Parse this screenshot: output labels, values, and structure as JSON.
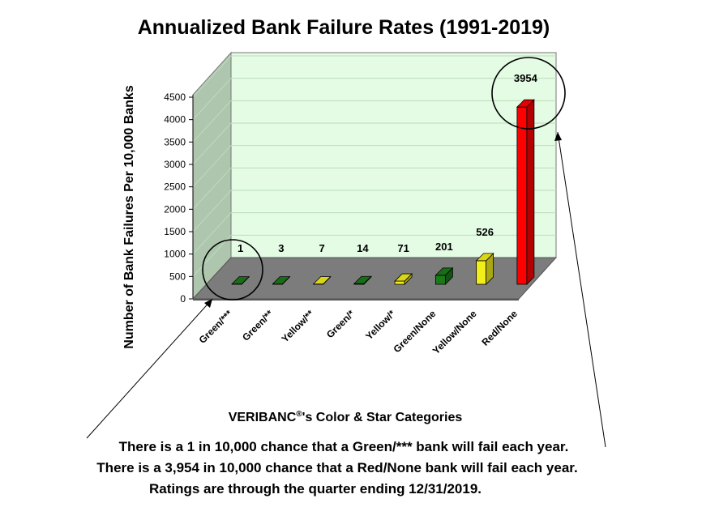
{
  "chart_data": {
    "type": "bar",
    "title": "Annualized Bank Failure Rates (1991-2019)",
    "ylabel": "Number of Bank Failures Per 10,000 Banks",
    "xlabel_prefix": "VERIBANC",
    "xlabel_sup": "®",
    "xlabel_suffix": "'s Color & Star Categories",
    "ylim": [
      0,
      4500
    ],
    "yticks": [
      "0",
      "500",
      "1000",
      "1500",
      "2000",
      "2500",
      "3000",
      "3500",
      "4000",
      "4500"
    ],
    "categories": [
      "Green/***",
      "Green/**",
      "Yellow/**",
      "Green/*",
      "Yellow/*",
      "Green/None",
      "Yellow/None",
      "Red/None"
    ],
    "values": [
      1,
      3,
      7,
      14,
      71,
      201,
      526,
      3954
    ],
    "labels": [
      "1",
      "3",
      "7",
      "14",
      "71",
      "201",
      "526",
      "3954"
    ],
    "bar_colors": [
      "#1a7a1a",
      "#1a7a1a",
      "#f2ee1a",
      "#1a7a1a",
      "#f2ee1a",
      "#1a7a1a",
      "#f2ee1a",
      "#ff0000"
    ],
    "colors": {
      "back_wall": "#e4fbe4",
      "side_wall": "#aec6ae",
      "floor": "#7c7c7c",
      "gridline": "#bcdcbc"
    },
    "grid": true,
    "legend": "none"
  },
  "notes": [
    "There is a 1 in 10,000 chance that a Green/*** bank will fail each year.",
    "There is a 3,954 in 10,000 chance that a Red/None bank will fail each year.",
    "Ratings are through the quarter ending 12/31/2019."
  ]
}
